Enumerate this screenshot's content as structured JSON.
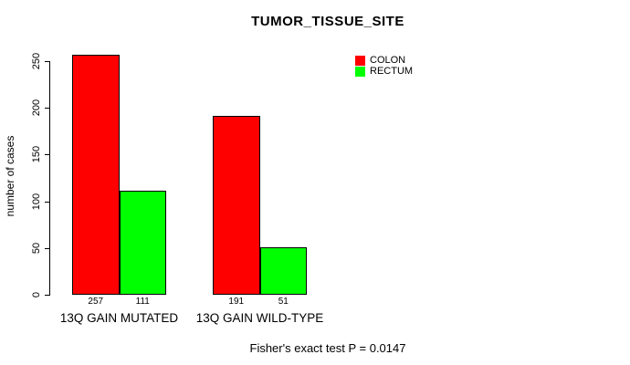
{
  "chart_data": {
    "type": "bar",
    "title": "TUMOR_TISSUE_SITE",
    "ylabel": "number of cases",
    "xlabel": "",
    "categories": [
      "13Q GAIN MUTATED",
      "13Q GAIN WILD-TYPE"
    ],
    "series": [
      {
        "name": "COLON",
        "color": "#FF0000",
        "values": [
          257,
          191
        ]
      },
      {
        "name": "RECTUM",
        "color": "#00FF00",
        "values": [
          111,
          51
        ]
      }
    ],
    "yticks": [
      0,
      50,
      100,
      150,
      200,
      250
    ],
    "ylim": [
      0,
      257
    ],
    "grid": false,
    "legend_position": "top-right",
    "value_labels_shown": true,
    "annotation": "Fisher's exact test P = 0.0147"
  },
  "colors": {
    "background": "#FFFFFF",
    "text": "#000000",
    "bar_border": "#000000",
    "colon": "#FF0000",
    "rectum": "#00FF00"
  }
}
